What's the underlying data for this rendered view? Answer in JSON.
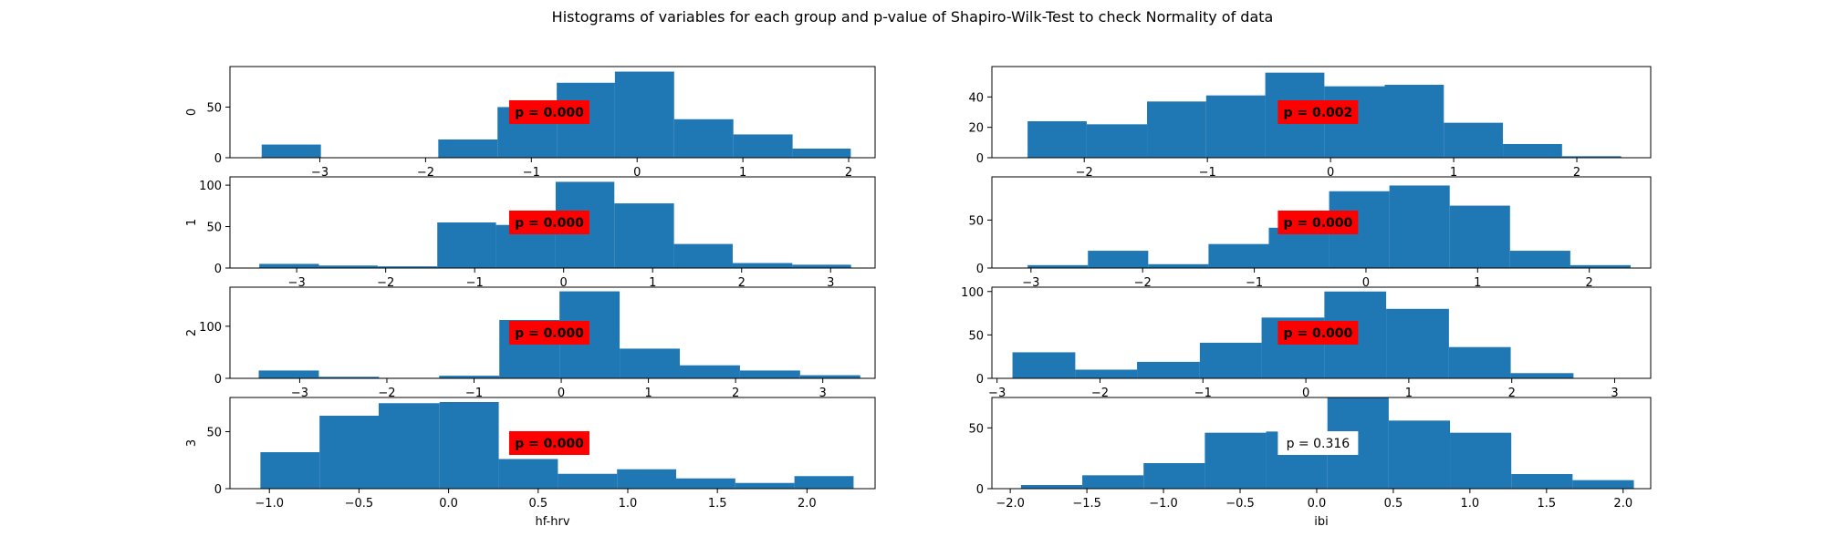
{
  "title": "Histograms of variables for each group and p-value of Shapiro-Wilk-Test to check Normality of data",
  "colors": {
    "bar": "#1f77b4",
    "significant_box": "#ff0000",
    "nonsignificant_box": "#ffffff"
  },
  "chart_data": [
    {
      "type": "bar",
      "column": "hf-hrv",
      "group": "0",
      "ylabel": "0",
      "xlabel": "",
      "xlim": [
        -3.85,
        2.25
      ],
      "ylim": [
        0,
        90
      ],
      "xticks": [
        -3,
        -2,
        -1,
        0,
        1,
        2
      ],
      "yticks": [
        0,
        50
      ],
      "bin_edges": [
        -3.55,
        -2.99,
        -2.43,
        -1.88,
        -1.32,
        -0.76,
        -0.21,
        0.35,
        0.91,
        1.47,
        2.02
      ],
      "values": [
        13,
        0,
        0,
        18,
        50,
        74,
        85,
        38,
        23,
        9
      ],
      "p_label": "p = 0.000",
      "significant": true
    },
    {
      "type": "bar",
      "column": "ibi",
      "group": "0",
      "ylabel": "",
      "xlabel": "",
      "xlim": [
        -2.75,
        2.6
      ],
      "ylim": [
        0,
        60
      ],
      "xticks": [
        -2,
        -1,
        0,
        1,
        2
      ],
      "yticks": [
        0,
        20,
        40
      ],
      "bin_edges": [
        -2.46,
        -1.98,
        -1.49,
        -1.01,
        -0.53,
        -0.05,
        0.44,
        0.92,
        1.4,
        1.88,
        2.36
      ],
      "values": [
        24,
        22,
        37,
        41,
        56,
        47,
        48,
        23,
        9,
        1
      ],
      "p_label": "p = 0.002",
      "significant": true
    },
    {
      "type": "bar",
      "column": "hf-hrv",
      "group": "1",
      "ylabel": "1",
      "xlabel": "",
      "xlim": [
        -3.75,
        3.5
      ],
      "ylim": [
        0,
        110
      ],
      "xticks": [
        -3,
        -2,
        -1,
        0,
        1,
        2,
        3
      ],
      "yticks": [
        0,
        50,
        100
      ],
      "bin_edges": [
        -3.42,
        -2.75,
        -2.09,
        -1.42,
        -0.76,
        -0.09,
        0.57,
        1.24,
        1.9,
        2.57,
        3.23
      ],
      "values": [
        5,
        3,
        2,
        55,
        52,
        104,
        78,
        29,
        6,
        4
      ],
      "p_label": "p = 0.000",
      "significant": true
    },
    {
      "type": "bar",
      "column": "ibi",
      "group": "1",
      "ylabel": "",
      "xlabel": "",
      "xlim": [
        -3.35,
        2.55
      ],
      "ylim": [
        0,
        95
      ],
      "xticks": [
        -3,
        -2,
        -1,
        0,
        1,
        2
      ],
      "yticks": [
        0,
        50
      ],
      "bin_edges": [
        -3.03,
        -2.49,
        -1.95,
        -1.41,
        -0.87,
        -0.33,
        0.21,
        0.75,
        1.29,
        1.83,
        2.37
      ],
      "values": [
        3,
        18,
        4,
        25,
        42,
        80,
        86,
        65,
        18,
        3
      ],
      "p_label": "p = 0.000",
      "significant": true
    },
    {
      "type": "bar",
      "column": "hf-hrv",
      "group": "2",
      "ylabel": "2",
      "xlabel": "",
      "xlim": [
        -3.8,
        3.6
      ],
      "ylim": [
        0,
        175
      ],
      "xticks": [
        -3,
        -2,
        -1,
        0,
        1,
        2,
        3
      ],
      "yticks": [
        0,
        100
      ],
      "bin_edges": [
        -3.47,
        -2.78,
        -2.09,
        -1.4,
        -0.71,
        -0.02,
        0.67,
        1.36,
        2.05,
        2.74,
        3.43
      ],
      "values": [
        15,
        3,
        1,
        5,
        112,
        167,
        57,
        25,
        15,
        6
      ],
      "p_label": "p = 0.000",
      "significant": true
    },
    {
      "type": "bar",
      "column": "ibi",
      "group": "2",
      "ylabel": "",
      "xlabel": "",
      "xlim": [
        -3.05,
        3.35
      ],
      "ylim": [
        0,
        105
      ],
      "xticks": [
        -3,
        -2,
        -1,
        0,
        1,
        2,
        3
      ],
      "yticks": [
        0,
        50,
        100
      ],
      "bin_edges": [
        -2.85,
        -2.24,
        -1.64,
        -1.03,
        -0.43,
        0.18,
        0.78,
        1.39,
        1.99,
        2.6,
        3.2
      ],
      "values": [
        30,
        10,
        19,
        41,
        70,
        100,
        80,
        36,
        6,
        0
      ],
      "p_label": "p = 0.000",
      "significant": true
    },
    {
      "type": "bar",
      "column": "hf-hrv",
      "group": "3",
      "ylabel": "3",
      "xlabel": "hf-hrv",
      "xlim": [
        -1.22,
        2.38
      ],
      "ylim": [
        0,
        80
      ],
      "xticks": [
        -1.0,
        -0.5,
        0.0,
        0.5,
        1.0,
        1.5,
        2.0
      ],
      "xtick_labels": [
        "−1.0",
        "−0.5",
        "0.0",
        "0.5",
        "1.0",
        "1.5",
        "2.0"
      ],
      "yticks": [
        0,
        50
      ],
      "bin_edges": [
        -1.05,
        -0.72,
        -0.39,
        -0.05,
        0.28,
        0.61,
        0.94,
        1.27,
        1.6,
        1.93,
        2.26
      ],
      "values": [
        32,
        64,
        75,
        76,
        26,
        13,
        17,
        9,
        5,
        11
      ],
      "p_label": "p = 0.000",
      "significant": true
    },
    {
      "type": "bar",
      "column": "ibi",
      "group": "3",
      "ylabel": "",
      "xlabel": "ibi",
      "xlim": [
        -2.12,
        2.18
      ],
      "ylim": [
        0,
        75
      ],
      "xticks": [
        -2.0,
        -1.5,
        -1.0,
        -0.5,
        0.0,
        0.5,
        1.0,
        1.5,
        2.0
      ],
      "xtick_labels": [
        "−2.0",
        "−1.5",
        "−1.0",
        "−0.5",
        "0.0",
        "0.5",
        "1.0",
        "1.5",
        "2.0"
      ],
      "yticks": [
        0,
        50
      ],
      "bin_edges": [
        -1.93,
        -1.53,
        -1.13,
        -0.73,
        -0.33,
        0.07,
        0.47,
        0.87,
        1.27,
        1.67,
        2.07
      ],
      "values": [
        3,
        11,
        21,
        46,
        47,
        75,
        56,
        46,
        12,
        7
      ],
      "p_label": "p = 0.316",
      "significant": false
    }
  ]
}
